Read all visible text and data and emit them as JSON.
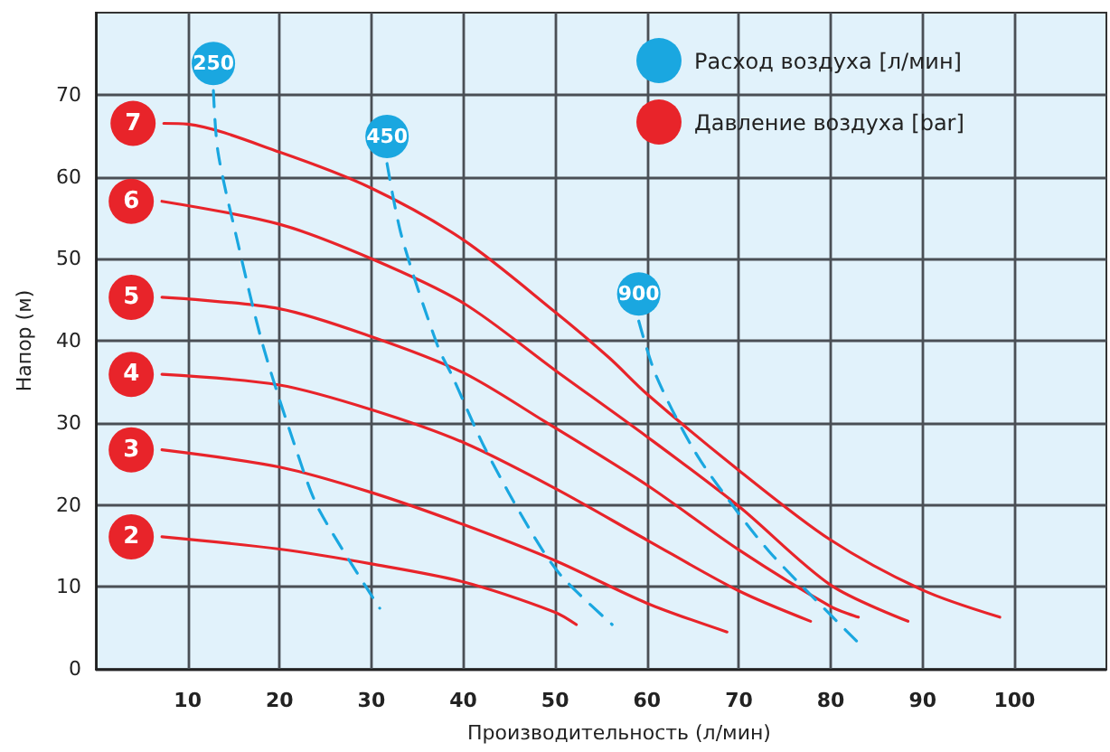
{
  "chart_data": {
    "type": "line",
    "xlabel": "Производительность (л/мин)",
    "ylabel": "Напор (м)",
    "xlim": [
      0,
      110
    ],
    "xticks": [
      10,
      20,
      30,
      40,
      50,
      60,
      70,
      80,
      90,
      100
    ],
    "ylim": [
      0,
      80
    ],
    "yticks": [
      0,
      10,
      20,
      30,
      40,
      50,
      60,
      70
    ],
    "grid": true,
    "marker": "none",
    "annotations": [
      "Расход воздуха [л/мин]",
      "Давление воздуха [bar]"
    ],
    "series": [
      {
        "name": "7",
        "color": "#e8242a",
        "line_style": "solid",
        "x": [
          7.4,
          10,
          20,
          30,
          40,
          50,
          55.9,
          60,
          70,
          80,
          90,
          98.4
        ],
        "values": [
          66.5,
          66.4,
          63,
          58.6,
          52.3,
          43.5,
          37.9,
          33.5,
          24.2,
          15.7,
          9.6,
          6.3
        ]
      },
      {
        "name": "6",
        "color": "#e8242a",
        "line_style": "solid",
        "x": [
          7.2,
          20,
          30,
          40,
          50,
          60,
          70,
          80,
          88.4
        ],
        "values": [
          57,
          54.2,
          50,
          44.6,
          36.4,
          28.3,
          19.8,
          10.2,
          5.8
        ]
      },
      {
        "name": "5",
        "color": "#e8242a",
        "line_style": "solid",
        "x": [
          7.2,
          20,
          30,
          40,
          48.8,
          60,
          70,
          80,
          83
        ],
        "values": [
          45.3,
          43.9,
          40.5,
          36.1,
          30.2,
          22.4,
          14.5,
          7.6,
          6.3
        ]
      },
      {
        "name": "4",
        "color": "#e8242a",
        "line_style": "solid",
        "x": [
          7.2,
          20,
          30,
          40,
          50,
          60,
          70,
          77.8
        ],
        "values": [
          35.9,
          34.6,
          31.6,
          27.6,
          22,
          15.7,
          9.5,
          5.8
        ]
      },
      {
        "name": "3",
        "color": "#e8242a",
        "line_style": "solid",
        "x": [
          7.2,
          20,
          30,
          40,
          50,
          60,
          68.7
        ],
        "values": [
          26.7,
          24.6,
          21.5,
          17.6,
          13.2,
          8,
          4.5
        ]
      },
      {
        "name": "2",
        "color": "#e8242a",
        "line_style": "solid",
        "x": [
          7.2,
          20,
          30,
          40,
          50,
          52.3
        ],
        "values": [
          16.1,
          14.6,
          12.8,
          10.6,
          6.9,
          5.4
        ]
      },
      {
        "name": "250",
        "color": "#1aa7e0",
        "line_style": "dashed",
        "x": [
          12.8,
          13.3,
          15.3,
          18.2,
          22,
          24.3,
          30.9
        ],
        "values": [
          70.5,
          63,
          52.7,
          39.4,
          26.1,
          19.4,
          7.4
        ]
      },
      {
        "name": "450",
        "color": "#1aa7e0",
        "line_style": "dashed",
        "x": [
          31.7,
          33.3,
          37.2,
          38.8,
          42.4,
          47.5,
          50.7,
          56.2
        ],
        "values": [
          61.6,
          52.7,
          39.4,
          35.7,
          26.8,
          16.5,
          11.3,
          5.4
        ]
      },
      {
        "name": "900",
        "color": "#1aa7e0",
        "line_style": "dashed",
        "x": [
          59.1,
          61,
          65.2,
          69.4,
          73.3,
          78.1,
          82.8
        ],
        "values": [
          42.4,
          35.7,
          26.5,
          19.8,
          14.3,
          8.7,
          3.4
        ]
      }
    ]
  }
}
